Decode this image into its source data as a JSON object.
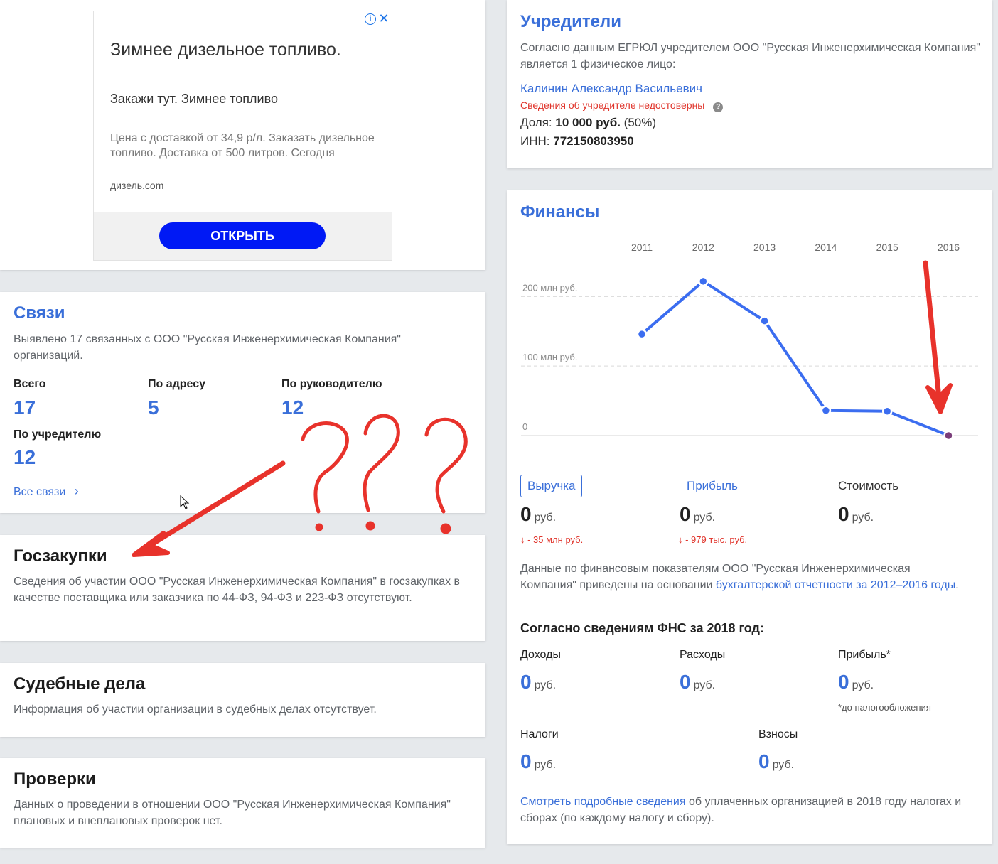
{
  "ad": {
    "title": "Зимнее дизельное топливо.",
    "subtitle": "Закажи тут. Зимнее топливо",
    "description": "Цена с доставкой от 34,9 р/л. Заказать дизельное топливо. Доставка от 500 литров. Сегодня",
    "domain": "дизель.com",
    "cta": "ОТКРЫТЬ"
  },
  "founders": {
    "title": "Учредители",
    "text": "Согласно данным ЕГРЮЛ учредителем ООО \"Русская Инженерхимическая Компания\" является 1 физическое лицо:",
    "name": "Калинин Александр Васильевич",
    "warning": "Сведения об учредителе недостоверны",
    "share_label": "Доля:",
    "share_value": "10 000 руб.",
    "share_pct": "(50%)",
    "inn_label": "ИНН:",
    "inn_value": "772150803950"
  },
  "links": {
    "title": "Связи",
    "text": "Выявлено 17 связанных с ООО \"Русская Инженерхимическая Компания\" организаций.",
    "stats": [
      {
        "label": "Всего",
        "value": "17"
      },
      {
        "label": "По адресу",
        "value": "5"
      },
      {
        "label": "По руководителю",
        "value": "12"
      },
      {
        "label": "По учредителю",
        "value": "12"
      }
    ],
    "all_link": "Все связи",
    "chevron": "›"
  },
  "procurement": {
    "title": "Госзакупки",
    "text": "Сведения об участии ООО \"Русская Инженерхимическая Компания\" в госзакупках в качестве поставщика или заказчика по 44-ФЗ, 94-ФЗ и 223-ФЗ отсутствуют."
  },
  "court": {
    "title": "Судебные дела",
    "text": "Информация об участии организации в судебных делах отсутствует."
  },
  "inspections": {
    "title": "Проверки",
    "text": "Данных о проведении в отношении ООО \"Русская Инженерхимическая Компания\" плановых и внеплановых проверок нет."
  },
  "finance": {
    "title": "Финансы",
    "metrics": [
      {
        "label": "Выручка",
        "value": "0",
        "unit": "руб.",
        "delta": "↓ - 35 млн руб."
      },
      {
        "label": "Прибыль",
        "value": "0",
        "unit": "руб.",
        "delta": "↓ - 979 тыс. руб."
      },
      {
        "label": "Стоимость",
        "value": "0",
        "unit": "руб.",
        "delta": ""
      }
    ],
    "note_before": "Данные по финансовым показателям ООО \"Русская Инженерхимическая Компания\" приведены на основании ",
    "note_link": "бухгалтерской отчетности за 2012–2016 годы",
    "note_after": ".",
    "fns_title": "Согласно сведениям ФНС за 2018 год:",
    "fns": [
      {
        "label": "Доходы",
        "value": "0",
        "unit": "руб.",
        "note": ""
      },
      {
        "label": "Расходы",
        "value": "0",
        "unit": "руб.",
        "note": ""
      },
      {
        "label": "Прибыль*",
        "value": "0",
        "unit": "руб.",
        "note": "*до налогообложения"
      },
      {
        "label": "Налоги",
        "value": "0",
        "unit": "руб.",
        "note": ""
      },
      {
        "label": "Взносы",
        "value": "0",
        "unit": "руб.",
        "note": ""
      }
    ],
    "more_link": "Смотреть подробные сведения",
    "more_text": " об уплаченных организацией в 2018 году налогах и сборах (по каждому налогу и сбору)."
  },
  "chart_data": {
    "type": "line",
    "x": [
      "2011",
      "2012",
      "2013",
      "2014",
      "2015",
      "2016"
    ],
    "series": [
      {
        "values": [
          146,
          222,
          165,
          36,
          35,
          0
        ]
      }
    ],
    "y_ticks": [
      {
        "value": 0,
        "label": "0"
      },
      {
        "value": 100,
        "label": "100 млн руб."
      },
      {
        "value": 200,
        "label": "200 млн руб."
      }
    ],
    "ylim": [
      0,
      230
    ],
    "grid": true,
    "line_color": "#3b6df0",
    "last_point_color": "#7a3d7a"
  },
  "annotation": {
    "marks": "???",
    "color": "#e8322b"
  }
}
